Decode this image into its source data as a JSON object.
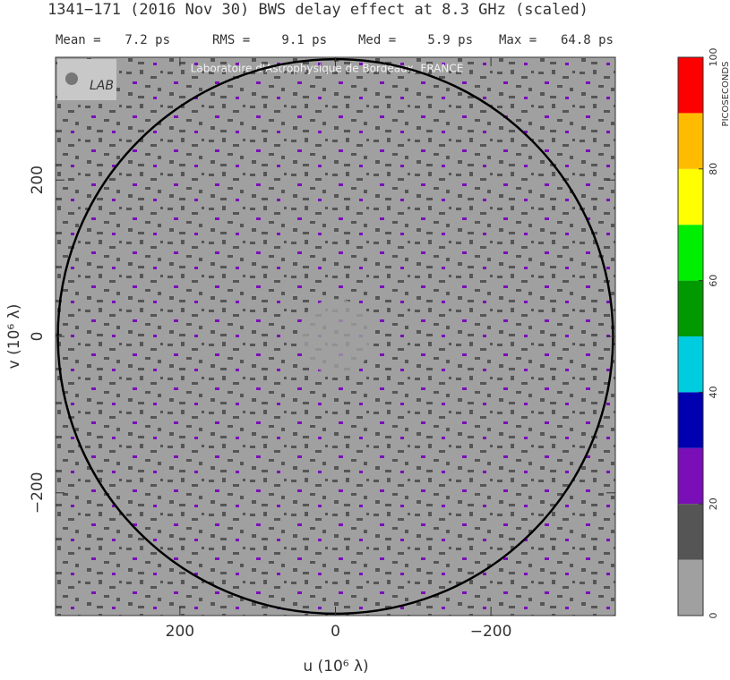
{
  "chart_data": {
    "type": "uv-map",
    "title": "1341−171  (2016 Nov 30)   BWS delay effect at  8.3 GHz (scaled)",
    "stats": [
      {
        "label": "Mean =",
        "value": "7.2 ps"
      },
      {
        "label": "RMS =",
        "value": "9.1 ps"
      },
      {
        "label": "Med =",
        "value": "5.9 ps"
      },
      {
        "label": "Max =",
        "value": "64.8 ps"
      }
    ],
    "watermark": "Laboratoire d'Astrophysique de Bordeaux, FRANCE",
    "logo_text": "LAB",
    "xlabel": "u  (10⁶ λ)",
    "ylabel": "v  (10⁶ λ)",
    "xlim": [
      360,
      -360
    ],
    "ylim": [
      -357,
      357
    ],
    "xticks": [
      {
        "value": 200,
        "label": "200"
      },
      0,
      {
        "value": -200,
        "label": "−200"
      }
    ],
    "yticks": [
      {
        "value": 200,
        "label": "200"
      },
      0,
      {
        "value": -200,
        "label": "−200"
      }
    ],
    "circle_radius": 357,
    "colorbar": {
      "label": "PICOSECONDS",
      "lim": [
        0,
        100
      ],
      "ticks": [
        0,
        20,
        40,
        60,
        80,
        100
      ],
      "bins": [
        0,
        10,
        20,
        30,
        40,
        50,
        60,
        70,
        80,
        90,
        100
      ],
      "colors": [
        "#a0a0a0",
        "#555555",
        "#7a0fb8",
        "#0000b0",
        "#00cce0",
        "#009900",
        "#00ee00",
        "#ffff00",
        "#ffbb00",
        "#ff0000"
      ]
    }
  }
}
